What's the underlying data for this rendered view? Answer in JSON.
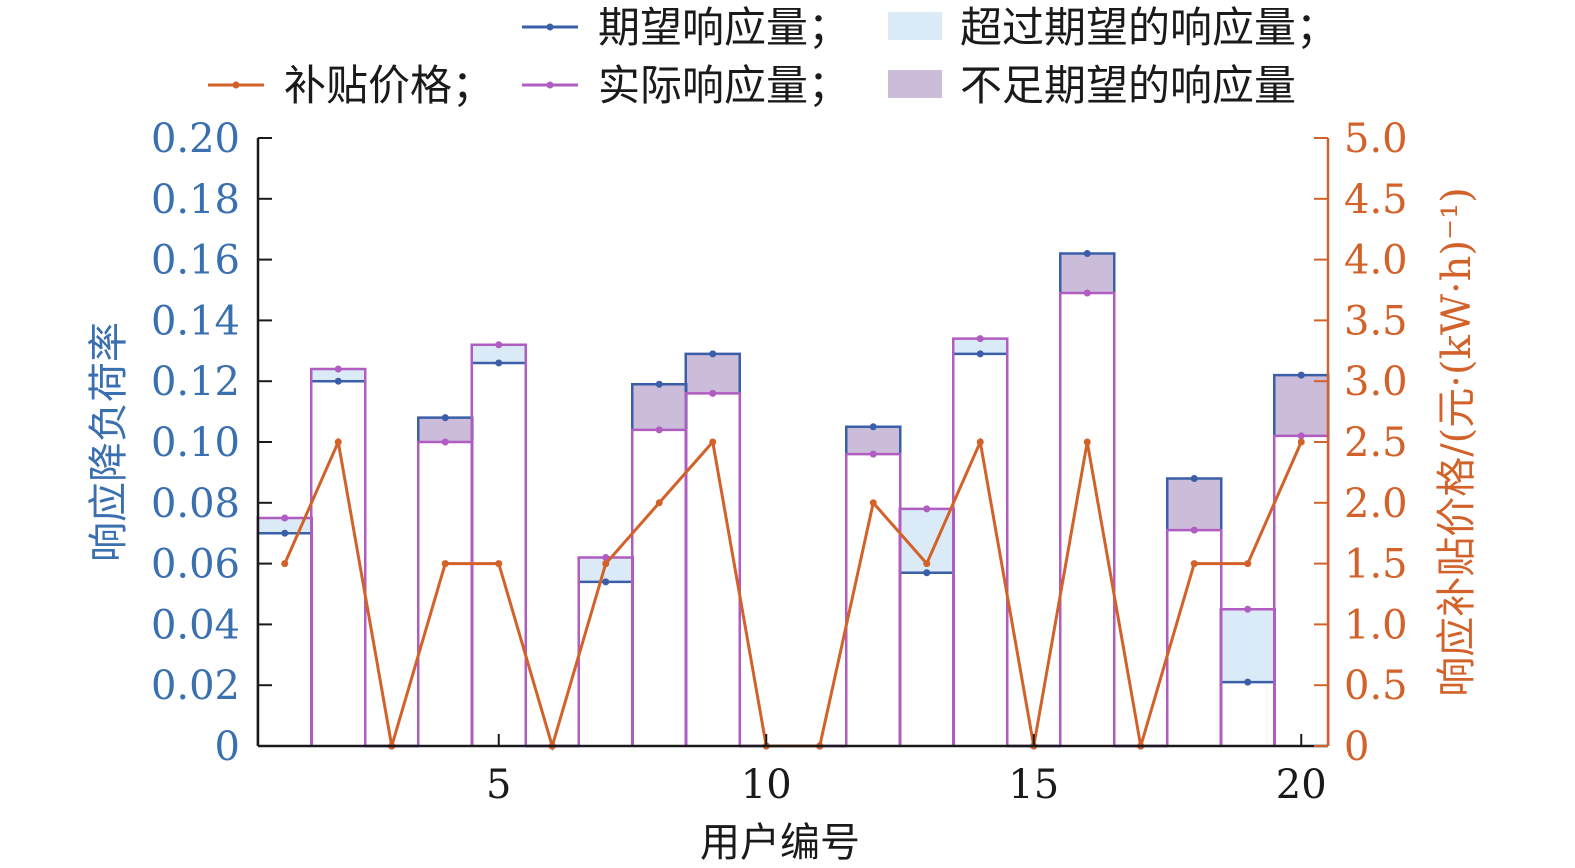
{
  "chart_data": {
    "type": "bar",
    "title": "",
    "xlabel": "用户编号",
    "ylabel_left": "响应降负荷率",
    "ylabel_right": "响应补贴价格/(元·(kW·h)⁻¹)",
    "x_ticks": [
      "5",
      "10",
      "15",
      "20"
    ],
    "x_tick_values": [
      5,
      10,
      15,
      20
    ],
    "xlim": [
      0.5,
      20.5
    ],
    "ylim_left": [
      0,
      0.2
    ],
    "ylim_right": [
      0,
      5
    ],
    "left_ticks": [
      "0",
      "0.02",
      "0.04",
      "0.06",
      "0.08",
      "0.10",
      "0.12",
      "0.14",
      "0.16",
      "0.18",
      "0.20"
    ],
    "left_tick_values": [
      0,
      0.02,
      0.04,
      0.06,
      0.08,
      0.1,
      0.12,
      0.14,
      0.16,
      0.18,
      0.2
    ],
    "right_ticks": [
      "0",
      "0.5",
      "1.0",
      "1.5",
      "2.0",
      "2.5",
      "3.0",
      "3.5",
      "4.0",
      "4.5",
      "5.0"
    ],
    "right_tick_values": [
      0,
      0.5,
      1.0,
      1.5,
      2.0,
      2.5,
      3.0,
      3.5,
      4.0,
      4.5,
      5.0
    ],
    "categories": [
      1,
      2,
      3,
      4,
      5,
      6,
      7,
      8,
      9,
      10,
      11,
      12,
      13,
      14,
      15,
      16,
      17,
      18,
      19,
      20
    ],
    "series": [
      {
        "name": "期望响应量",
        "axis": "left",
        "color": "#3a5fa8",
        "values": [
          0.07,
          0.12,
          0,
          0.108,
          0.126,
          0,
          0.054,
          0.119,
          0.129,
          0,
          0,
          0.105,
          0.057,
          0.129,
          0,
          0.162,
          0,
          0.088,
          0.021,
          0.122
        ]
      },
      {
        "name": "实际响应量",
        "axis": "left",
        "color": "#b05cc0",
        "values": [
          0.075,
          0.124,
          0,
          0.1,
          0.132,
          0,
          0.062,
          0.104,
          0.116,
          0,
          0,
          0.096,
          0.078,
          0.134,
          0,
          0.149,
          0,
          0.071,
          0.045,
          0.102
        ]
      },
      {
        "name": "补贴价格",
        "axis": "right",
        "color": "#d2622a",
        "values": [
          1.5,
          2.5,
          0,
          1.5,
          1.5,
          0,
          1.5,
          2.0,
          2.5,
          0,
          0,
          2.0,
          1.5,
          2.5,
          0,
          2.5,
          0,
          1.5,
          1.5,
          2.5
        ]
      }
    ],
    "fills": [
      {
        "name": "超过期望的响应量",
        "color": "#dbeaf7"
      },
      {
        "name": "不足期望的响应量",
        "color": "#cbbcda"
      }
    ],
    "legend": {
      "placement": "top",
      "entries": [
        {
          "text": "期望响应量；",
          "kind": "line",
          "color": "#3a5fa8"
        },
        {
          "text": "超过期望的响应量；",
          "kind": "box",
          "color": "#dbeaf7"
        },
        {
          "text": "补贴价格；",
          "kind": "line",
          "color": "#d2622a"
        },
        {
          "text": "实际响应量；",
          "kind": "line",
          "color": "#b05cc0"
        },
        {
          "text": "不足期望的响应量",
          "kind": "box",
          "color": "#cbbcda"
        }
      ]
    }
  }
}
